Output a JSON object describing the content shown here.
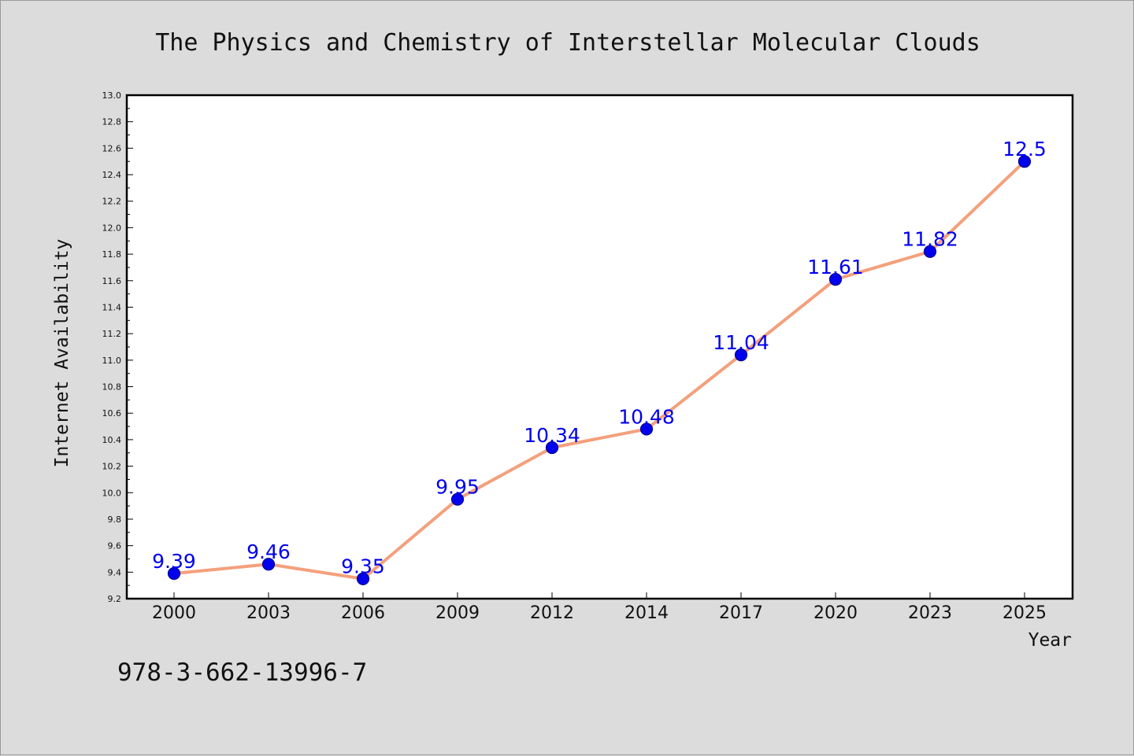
{
  "page": {
    "footer_code": "978-3-662-13996-7"
  },
  "chart_data": {
    "type": "line",
    "title": "The Physics and Chemistry of Interstellar Molecular Clouds",
    "xlabel": "Year",
    "ylabel": "Internet Availability",
    "categories": [
      "2000",
      "2003",
      "2006",
      "2009",
      "2012",
      "2014",
      "2017",
      "2020",
      "2023",
      "2025"
    ],
    "values": [
      9.39,
      9.46,
      9.35,
      9.95,
      10.34,
      10.48,
      11.04,
      11.61,
      11.82,
      12.5
    ],
    "data_labels": [
      "9.39",
      "9.46",
      "9.35",
      "9.95",
      "10.34",
      "10.48",
      "11.04",
      "11.61",
      "11.82",
      "12.5"
    ],
    "ylim": [
      9.2,
      13.0
    ],
    "yticks": [
      "9.2",
      "9.4",
      "9.6",
      "9.8",
      "10.0",
      "10.2",
      "10.4",
      "10.6",
      "10.8",
      "11.0",
      "11.2",
      "11.4",
      "11.6",
      "11.8",
      "12.0",
      "12.2",
      "12.4",
      "12.6",
      "12.8",
      "13.0"
    ],
    "grid": false,
    "legend": "none",
    "colors": {
      "line": "#f4a07c",
      "marker_fill": "#0000ee",
      "marker_stroke": "#00008b",
      "data_label": "#0000ee",
      "plot_background": "#ffffff",
      "page_background": "#dcdcdc"
    }
  }
}
